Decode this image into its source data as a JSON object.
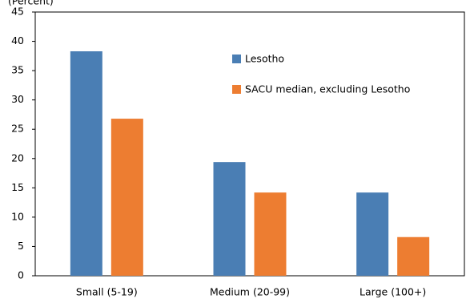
{
  "chart_data": {
    "type": "bar",
    "y_label": "(Percent)",
    "categories": [
      "Small (5-19)",
      "Medium (20-99)",
      "Large (100+)"
    ],
    "series": [
      {
        "name": "Lesotho",
        "color": "#4a7eb4",
        "values": [
          38.3,
          19.4,
          14.2
        ]
      },
      {
        "name": "SACU median, excluding Lesotho",
        "color": "#ed7d31",
        "values": [
          26.8,
          14.2,
          6.6
        ]
      }
    ],
    "ylim": [
      0,
      45
    ],
    "yticks": [
      0,
      5,
      10,
      15,
      20,
      25,
      30,
      35,
      40,
      45
    ],
    "grid": false
  }
}
